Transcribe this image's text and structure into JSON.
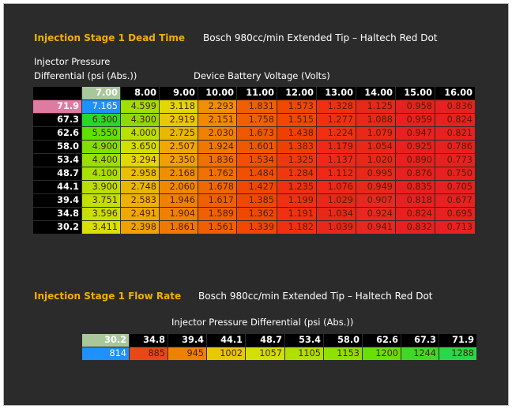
{
  "dead_time": {
    "title": "Injection Stage 1 Dead Time",
    "subtitle": "Bosch 980cc/min Extended Tip – Haltech Red Dot",
    "axis_label_line1": "Injector Pressure",
    "axis_label_line2": "Differential (psi (Abs.))",
    "col_axis_label": "Device Battery Voltage  (Volts)",
    "columns": [
      "7.00",
      "8.00",
      "9.00",
      "10.00",
      "11.00",
      "12.00",
      "13.00",
      "14.00",
      "15.00",
      "16.00"
    ],
    "selected_column": 0,
    "selected_row": 0,
    "rows": [
      {
        "label": "71.9",
        "cells": [
          "7.165",
          "4.599",
          "3.118",
          "2.293",
          "1.831",
          "1.573",
          "1.328",
          "1.125",
          "0.958",
          "0.836"
        ]
      },
      {
        "label": "67.3",
        "cells": [
          "6.300",
          "4.300",
          "2.919",
          "2.151",
          "1.758",
          "1.515",
          "1.277",
          "1.088",
          "0.959",
          "0.824"
        ]
      },
      {
        "label": "62.6",
        "cells": [
          "5.550",
          "4.000",
          "2.725",
          "2.030",
          "1.673",
          "1.438",
          "1.224",
          "1.079",
          "0.947",
          "0.821"
        ]
      },
      {
        "label": "58.0",
        "cells": [
          "4.900",
          "3.650",
          "2.507",
          "1.924",
          "1.601",
          "1.383",
          "1.179",
          "1.054",
          "0.925",
          "0.786"
        ]
      },
      {
        "label": "53.4",
        "cells": [
          "4.400",
          "3.294",
          "2.350",
          "1.836",
          "1.534",
          "1.325",
          "1.137",
          "1.020",
          "0.890",
          "0.773"
        ]
      },
      {
        "label": "48.7",
        "cells": [
          "4.100",
          "2.958",
          "2.168",
          "1.762",
          "1.484",
          "1.284",
          "1.112",
          "0.995",
          "0.876",
          "0.750"
        ]
      },
      {
        "label": "44.1",
        "cells": [
          "3.900",
          "2.748",
          "2.060",
          "1.678",
          "1.427",
          "1.235",
          "1.076",
          "0.949",
          "0.835",
          "0.705"
        ]
      },
      {
        "label": "39.4",
        "cells": [
          "3.751",
          "2.583",
          "1.946",
          "1.617",
          "1.385",
          "1.199",
          "1.029",
          "0.907",
          "0.818",
          "0.677"
        ]
      },
      {
        "label": "34.8",
        "cells": [
          "3.596",
          "2.491",
          "1.904",
          "1.589",
          "1.362",
          "1.191",
          "1.034",
          "0.924",
          "0.824",
          "0.695"
        ]
      },
      {
        "label": "30.2",
        "cells": [
          "3.411",
          "2.398",
          "1.861",
          "1.561",
          "1.339",
          "1.182",
          "1.039",
          "0.941",
          "0.832",
          "0.713"
        ]
      }
    ],
    "colors": [
      [
        "#1e90ff",
        "#a0e000",
        "#e0d800",
        "#f09000",
        "#f06000",
        "#f04800",
        "#f03010",
        "#e82818",
        "#e82020",
        "#e82020"
      ],
      [
        "#28d828",
        "#90d800",
        "#e8c800",
        "#f08800",
        "#f06000",
        "#f04800",
        "#f03010",
        "#e82818",
        "#e82020",
        "#e82020"
      ],
      [
        "#60e000",
        "#b8e000",
        "#e8b800",
        "#f08000",
        "#f05800",
        "#f04000",
        "#f03010",
        "#e82818",
        "#e82020",
        "#e82020"
      ],
      [
        "#80e000",
        "#d0e000",
        "#f0a800",
        "#f07800",
        "#f05800",
        "#f04000",
        "#f02818",
        "#e82818",
        "#e82020",
        "#e82020"
      ],
      [
        "#98e000",
        "#e0d800",
        "#f0a000",
        "#f07000",
        "#f05000",
        "#f03810",
        "#f02818",
        "#e82818",
        "#e82020",
        "#e82020"
      ],
      [
        "#a8e000",
        "#e8c000",
        "#f09000",
        "#f07000",
        "#f05000",
        "#f03810",
        "#f02818",
        "#e82818",
        "#e82020",
        "#e82020"
      ],
      [
        "#b8e000",
        "#e8b800",
        "#f08800",
        "#f06800",
        "#f04800",
        "#f03010",
        "#f02818",
        "#e82818",
        "#e82020",
        "#e82020"
      ],
      [
        "#c0e000",
        "#f0b000",
        "#f08000",
        "#f06000",
        "#f04800",
        "#f03010",
        "#e82818",
        "#e82820",
        "#e82020",
        "#e82020"
      ],
      [
        "#c8e000",
        "#f0a800",
        "#f08000",
        "#f06000",
        "#f04800",
        "#f03010",
        "#e82818",
        "#e82820",
        "#e82020",
        "#e82020"
      ],
      [
        "#d8e000",
        "#f0a000",
        "#f07800",
        "#f06000",
        "#f04800",
        "#f03010",
        "#e82818",
        "#e82820",
        "#e82020",
        "#e82020"
      ]
    ]
  },
  "flow_rate": {
    "title": "Injection Stage 1 Flow Rate",
    "subtitle": "Bosch 980cc/min Extended Tip – Haltech Red Dot",
    "axis_label": "Injector Pressure Differential (psi (Abs.))",
    "columns": [
      "30.2",
      "34.8",
      "39.4",
      "44.1",
      "48.7",
      "53.4",
      "58.0",
      "62.6",
      "67.3",
      "71.9"
    ],
    "selected_column": 0,
    "values": [
      "814",
      "885",
      "945",
      "1002",
      "1057",
      "1105",
      "1153",
      "1200",
      "1244",
      "1288"
    ],
    "colors": [
      "#1e90ff",
      "#e84818",
      "#f08000",
      "#e8c800",
      "#d0e000",
      "#b0e000",
      "#90e000",
      "#68e000",
      "#40d828",
      "#28d848"
    ]
  }
}
